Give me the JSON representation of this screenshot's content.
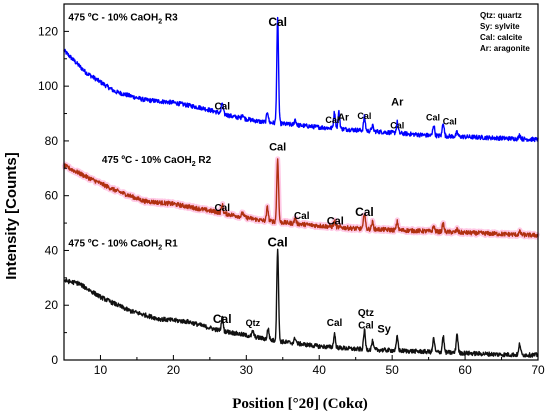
{
  "chart_data": {
    "type": "line",
    "xlabel": "Position [°2θ] (Cokα)",
    "ylabel": "Intensity [Counts]",
    "xlim": [
      5,
      70
    ],
    "ylim": [
      0,
      130
    ],
    "x_ticks": [
      10,
      20,
      30,
      40,
      50,
      60,
      70
    ],
    "y_ticks": [
      0,
      20,
      40,
      60,
      80,
      100,
      120
    ],
    "grid": false,
    "legend_position": "top-right",
    "legend": [
      "Qtz: quartz",
      "Sy: sylvite",
      "Cal: calcite",
      "Ar: aragonite"
    ],
    "series": [
      {
        "name": "475 ºC - 10% CaOH2 R3",
        "color": "#0000ff",
        "baseline": [
          [
            5,
            113
          ],
          [
            8,
            105
          ],
          [
            12,
            98
          ],
          [
            16,
            95
          ],
          [
            20,
            94
          ],
          [
            24,
            92
          ],
          [
            28,
            89
          ],
          [
            32,
            87
          ],
          [
            36,
            86
          ],
          [
            40,
            85
          ],
          [
            45,
            84
          ],
          [
            50,
            83
          ],
          [
            55,
            82
          ],
          [
            60,
            81.5
          ],
          [
            65,
            81
          ],
          [
            70,
            80.5
          ]
        ],
        "peaks": [
          [
            26.7,
            4
          ],
          [
            29.5,
            1.5
          ],
          [
            32.9,
            4
          ],
          [
            34.3,
            38
          ],
          [
            36.7,
            2
          ],
          [
            42.1,
            6
          ],
          [
            42.7,
            6
          ],
          [
            46.2,
            5
          ],
          [
            47.3,
            2
          ],
          [
            50.7,
            4
          ],
          [
            55.7,
            4
          ],
          [
            57,
            5
          ],
          [
            58.9,
            1.5
          ],
          [
            67.5,
            1.5
          ]
        ]
      },
      {
        "name": "475 ºC - 10% CaOH2 R2",
        "color": "#b03010",
        "baseline": [
          [
            5,
            71
          ],
          [
            8,
            67
          ],
          [
            12,
            62
          ],
          [
            16,
            58
          ],
          [
            20,
            57
          ],
          [
            24,
            55
          ],
          [
            28,
            53
          ],
          [
            32,
            51
          ],
          [
            36,
            50
          ],
          [
            40,
            49
          ],
          [
            45,
            48
          ],
          [
            50,
            47.5
          ],
          [
            55,
            47
          ],
          [
            60,
            46.5
          ],
          [
            65,
            46
          ],
          [
            70,
            45.5
          ]
        ],
        "peaks": [
          [
            26.7,
            3
          ],
          [
            29.5,
            1.5
          ],
          [
            32.9,
            5
          ],
          [
            34.3,
            23
          ],
          [
            36.7,
            2
          ],
          [
            42.1,
            2
          ],
          [
            46.2,
            6
          ],
          [
            47.3,
            2.5
          ],
          [
            50.7,
            3
          ],
          [
            55.7,
            2
          ],
          [
            57,
            3
          ],
          [
            58.9,
            1
          ],
          [
            67.5,
            1
          ]
        ]
      },
      {
        "name": "475 ºC - 10% CaOH2 R1",
        "color": "#111111",
        "baseline": [
          [
            5,
            29
          ],
          [
            7,
            28
          ],
          [
            10,
            23
          ],
          [
            14,
            18
          ],
          [
            18,
            15
          ],
          [
            22,
            14
          ],
          [
            26,
            11
          ],
          [
            30,
            9
          ],
          [
            34,
            7
          ],
          [
            40,
            5
          ],
          [
            45,
            4
          ],
          [
            50,
            3.5
          ],
          [
            55,
            3
          ],
          [
            60,
            2.5
          ],
          [
            65,
            2
          ],
          [
            70,
            1.8
          ]
        ],
        "peaks": [
          [
            26.7,
            5
          ],
          [
            30.9,
            2
          ],
          [
            33,
            4
          ],
          [
            34.3,
            34
          ],
          [
            36.7,
            2
          ],
          [
            42.1,
            5
          ],
          [
            46.2,
            7
          ],
          [
            47.3,
            3
          ],
          [
            50.7,
            5
          ],
          [
            55.7,
            5
          ],
          [
            57,
            6
          ],
          [
            58.9,
            7
          ],
          [
            67.5,
            4
          ]
        ]
      }
    ],
    "annotations": [
      {
        "text": "475 ºC - 10% CaOH",
        "sub": "2",
        "after": " R3",
        "x": 5.6,
        "y": 124,
        "size": 10
      },
      {
        "text": "475 ºC - 10% CaOH",
        "sub": "2",
        "after": " R2",
        "x": 10.2,
        "y": 72,
        "size": 10
      },
      {
        "text": "475 ºC - 10% CaOH",
        "sub": "2",
        "after": " R1",
        "x": 5.6,
        "y": 41.5,
        "size": 10
      },
      {
        "text": "Cal",
        "x": 34.3,
        "y": 122,
        "size": 12
      },
      {
        "text": "Cal",
        "x": 26.7,
        "y": 91.5,
        "size": 10
      },
      {
        "text": "Cal",
        "x": 41.8,
        "y": 86.5,
        "size": 9
      },
      {
        "text": "Ar",
        "x": 43.3,
        "y": 87.5,
        "size": 10
      },
      {
        "text": "Cal",
        "x": 46.2,
        "y": 88,
        "size": 9
      },
      {
        "text": "Ar",
        "x": 50.7,
        "y": 93,
        "size": 11
      },
      {
        "text": "Cal",
        "x": 50.7,
        "y": 84.5,
        "size": 9
      },
      {
        "text": "Cal",
        "x": 55.6,
        "y": 87.5,
        "size": 9
      },
      {
        "text": "Cal",
        "x": 57.9,
        "y": 86,
        "size": 9
      },
      {
        "text": "Cal",
        "x": 34.3,
        "y": 76.5,
        "size": 11
      },
      {
        "text": "Cal",
        "x": 26.7,
        "y": 54.5,
        "size": 10
      },
      {
        "text": "Cal",
        "x": 37.6,
        "y": 51.5,
        "size": 10
      },
      {
        "text": "Cal",
        "x": 42.2,
        "y": 49.5,
        "size": 11
      },
      {
        "text": "Cal",
        "x": 46.2,
        "y": 52.5,
        "size": 12
      },
      {
        "text": "Cal",
        "x": 34.3,
        "y": 41.5,
        "size": 13
      },
      {
        "text": "Cal",
        "x": 26.7,
        "y": 13.5,
        "size": 12
      },
      {
        "text": "Qtz",
        "x": 30.9,
        "y": 12.5,
        "size": 9
      },
      {
        "text": "Cal",
        "x": 42.1,
        "y": 12.5,
        "size": 10
      },
      {
        "text": "Qtz",
        "x": 46.4,
        "y": 16,
        "size": 10
      },
      {
        "text": "Cal",
        "x": 46.4,
        "y": 11.5,
        "size": 10
      },
      {
        "text": "Sy",
        "x": 48.9,
        "y": 10,
        "size": 11
      }
    ]
  }
}
